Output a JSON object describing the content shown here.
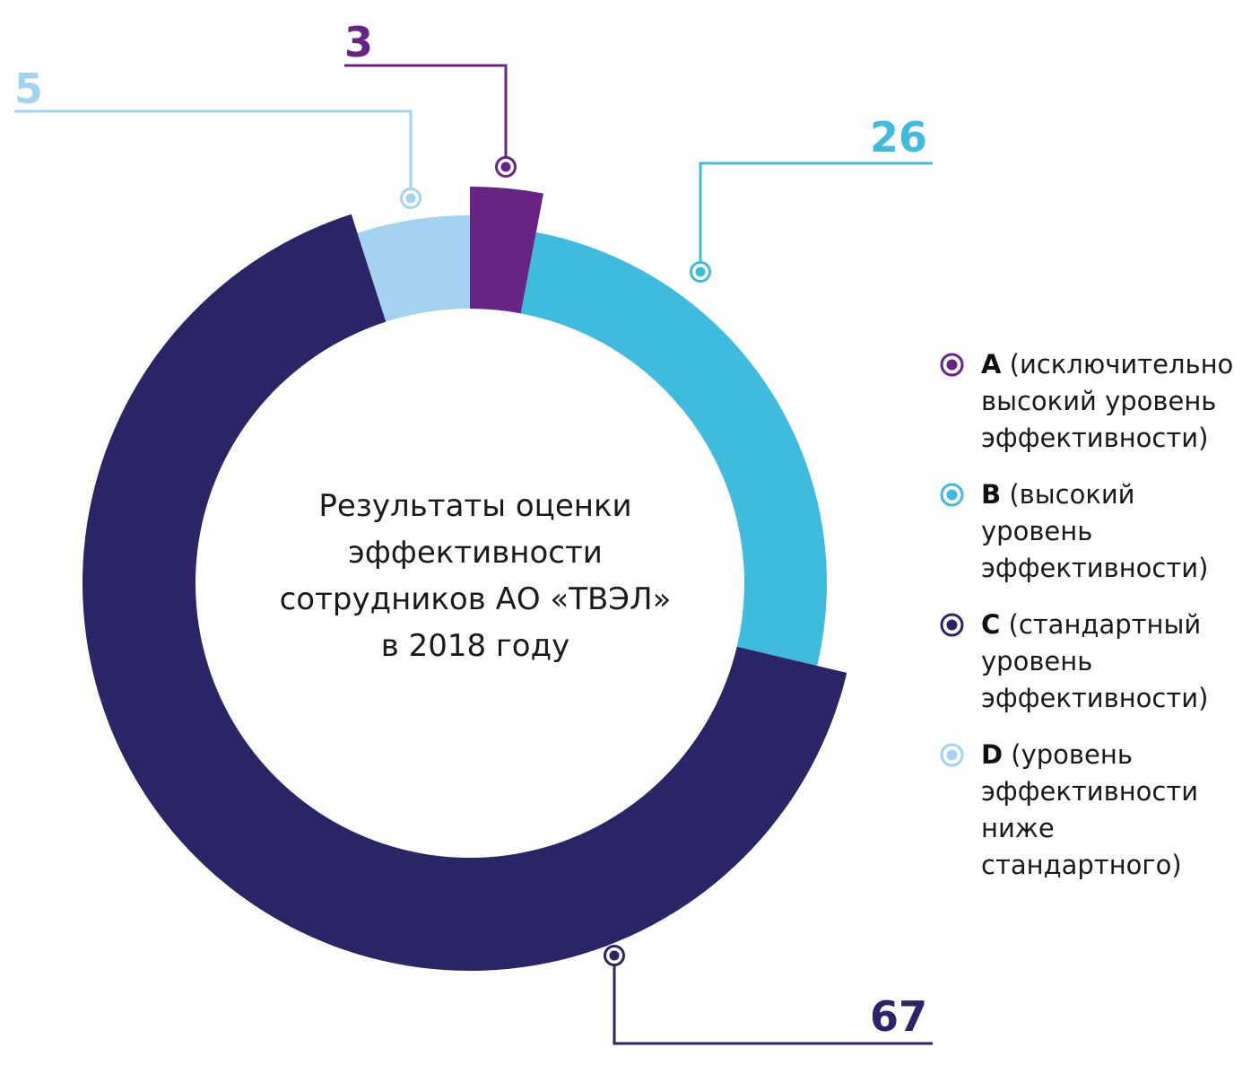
{
  "chart_data": {
    "type": "pie",
    "title": "Результаты оценки\nэффективности\nсотрудников АО «ТВЭЛ»\nв 2018 году",
    "categories": [
      "A",
      "B",
      "C",
      "D"
    ],
    "values": [
      3,
      26,
      67,
      5
    ],
    "colors": [
      "#662483",
      "#3fbcdd",
      "#2b2466",
      "#a4d3f1"
    ],
    "legend": [
      {
        "code": "A",
        "text": " (исключительно высокий уровень эффективности)"
      },
      {
        "code": "B",
        "text": " (высокий уровень эффективности)"
      },
      {
        "code": "C",
        "text": " (стандартный уровень эффективности)"
      },
      {
        "code": "D",
        "text": " (уровень эффективности ниже стандартного)"
      }
    ],
    "value_labels": [
      "3",
      "26",
      "67",
      "5"
    ],
    "legend_position": "right"
  }
}
